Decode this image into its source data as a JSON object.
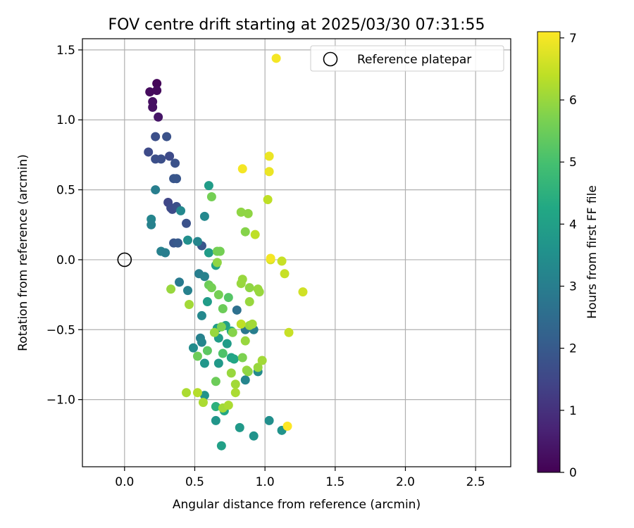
{
  "chart_data": {
    "type": "scatter",
    "title": "FOV centre drift starting at 2025/03/30 07:31:55",
    "xlabel": "Angular distance from reference (arcmin)",
    "ylabel": "Rotation from reference (arcmin)",
    "xlim": [
      -0.3,
      2.75
    ],
    "ylim": [
      -1.48,
      1.58
    ],
    "xticks": [
      0.0,
      0.5,
      1.0,
      1.5,
      2.0,
      2.5
    ],
    "xtick_labels": [
      "0.0",
      "0.5",
      "1.0",
      "1.5",
      "2.0",
      "2.5"
    ],
    "yticks": [
      -1.0,
      -0.5,
      0.0,
      0.5,
      1.0,
      1.5
    ],
    "ytick_labels": [
      "−1.0",
      "−0.5",
      "0.0",
      "0.5",
      "1.0",
      "1.5"
    ],
    "grid": true,
    "legend": {
      "position": "top-right",
      "label": "Reference platepar"
    },
    "reference_point": {
      "x": 0.0,
      "y": 0.0
    },
    "colorbar": {
      "label": "Hours from first FF file",
      "range": [
        0,
        7.1
      ],
      "ticks": [
        0,
        1,
        2,
        3,
        4,
        5,
        6,
        7
      ],
      "tick_labels": [
        "0",
        "1",
        "2",
        "3",
        "4",
        "5",
        "6",
        "7"
      ],
      "colormap": "viridis"
    },
    "points": [
      {
        "x": 0.23,
        "y": 1.26,
        "h": 0.1
      },
      {
        "x": 0.18,
        "y": 1.2,
        "h": 0.2
      },
      {
        "x": 0.23,
        "y": 1.21,
        "h": 0.2
      },
      {
        "x": 0.2,
        "y": 1.13,
        "h": 0.3
      },
      {
        "x": 0.2,
        "y": 1.09,
        "h": 0.3
      },
      {
        "x": 0.24,
        "y": 1.02,
        "h": 0.4
      },
      {
        "x": 0.22,
        "y": 0.88,
        "h": 1.7
      },
      {
        "x": 0.3,
        "y": 0.88,
        "h": 1.8
      },
      {
        "x": 0.17,
        "y": 0.77,
        "h": 1.6
      },
      {
        "x": 0.22,
        "y": 0.72,
        "h": 1.7
      },
      {
        "x": 0.26,
        "y": 0.72,
        "h": 1.7
      },
      {
        "x": 0.32,
        "y": 0.74,
        "h": 1.6
      },
      {
        "x": 0.36,
        "y": 0.69,
        "h": 1.8
      },
      {
        "x": 0.35,
        "y": 0.58,
        "h": 1.9
      },
      {
        "x": 0.37,
        "y": 0.58,
        "h": 1.9
      },
      {
        "x": 0.31,
        "y": 0.41,
        "h": 1.5
      },
      {
        "x": 0.33,
        "y": 0.37,
        "h": 1.6
      },
      {
        "x": 0.34,
        "y": 0.36,
        "h": 1.6
      },
      {
        "x": 0.37,
        "y": 0.38,
        "h": 1.7
      },
      {
        "x": 0.44,
        "y": 0.26,
        "h": 1.8
      },
      {
        "x": 0.35,
        "y": 0.12,
        "h": 1.9
      },
      {
        "x": 0.38,
        "y": 0.12,
        "h": 2.0
      },
      {
        "x": 0.55,
        "y": 0.1,
        "h": 1.9
      },
      {
        "x": 0.22,
        "y": 0.5,
        "h": 3.0
      },
      {
        "x": 0.4,
        "y": 0.35,
        "h": 3.3
      },
      {
        "x": 0.19,
        "y": 0.29,
        "h": 3.2
      },
      {
        "x": 0.19,
        "y": 0.25,
        "h": 3.1
      },
      {
        "x": 0.26,
        "y": 0.06,
        "h": 3.1
      },
      {
        "x": 0.29,
        "y": 0.05,
        "h": 3.0
      },
      {
        "x": 0.45,
        "y": 0.14,
        "h": 3.5
      },
      {
        "x": 0.52,
        "y": 0.13,
        "h": 3.2
      },
      {
        "x": 0.57,
        "y": 0.31,
        "h": 3.3
      },
      {
        "x": 0.6,
        "y": 0.53,
        "h": 3.9
      },
      {
        "x": 0.6,
        "y": 0.05,
        "h": 3.9
      },
      {
        "x": 0.65,
        "y": -0.04,
        "h": 4.0
      },
      {
        "x": 0.39,
        "y": -0.16,
        "h": 2.9
      },
      {
        "x": 0.45,
        "y": -0.22,
        "h": 3.1
      },
      {
        "x": 0.53,
        "y": -0.1,
        "h": 3.0
      },
      {
        "x": 0.57,
        "y": -0.12,
        "h": 3.1
      },
      {
        "x": 0.55,
        "y": -0.4,
        "h": 3.3
      },
      {
        "x": 0.59,
        "y": -0.3,
        "h": 3.9
      },
      {
        "x": 0.54,
        "y": -0.56,
        "h": 3.1
      },
      {
        "x": 0.55,
        "y": -0.59,
        "h": 3.2
      },
      {
        "x": 0.49,
        "y": -0.63,
        "h": 3.4
      },
      {
        "x": 0.57,
        "y": -0.74,
        "h": 3.7
      },
      {
        "x": 0.57,
        "y": -0.97,
        "h": 3.6
      },
      {
        "x": 0.66,
        "y": -0.49,
        "h": 3.9
      },
      {
        "x": 0.67,
        "y": -0.56,
        "h": 3.9
      },
      {
        "x": 0.67,
        "y": -0.74,
        "h": 3.8
      },
      {
        "x": 0.72,
        "y": -0.47,
        "h": 4.0
      },
      {
        "x": 0.73,
        "y": -0.6,
        "h": 3.9
      },
      {
        "x": 0.76,
        "y": -0.7,
        "h": 4.1
      },
      {
        "x": 0.78,
        "y": -0.71,
        "h": 4.2
      },
      {
        "x": 0.76,
        "y": -0.51,
        "h": 4.3
      },
      {
        "x": 0.8,
        "y": -0.36,
        "h": 2.6
      },
      {
        "x": 0.86,
        "y": -0.5,
        "h": 2.8
      },
      {
        "x": 0.92,
        "y": -0.5,
        "h": 3.0
      },
      {
        "x": 0.86,
        "y": -0.86,
        "h": 3.2
      },
      {
        "x": 0.95,
        "y": -0.8,
        "h": 3.4
      },
      {
        "x": 0.92,
        "y": -1.26,
        "h": 3.6
      },
      {
        "x": 0.82,
        "y": -1.2,
        "h": 3.8
      },
      {
        "x": 1.03,
        "y": -1.15,
        "h": 3.5
      },
      {
        "x": 1.12,
        "y": -1.22,
        "h": 3.6
      },
      {
        "x": 0.65,
        "y": -1.15,
        "h": 3.7
      },
      {
        "x": 0.69,
        "y": -1.33,
        "h": 4.0
      },
      {
        "x": 0.71,
        "y": -1.08,
        "h": 4.2
      },
      {
        "x": 0.65,
        "y": -1.05,
        "h": 4.5
      },
      {
        "x": 0.52,
        "y": -0.69,
        "h": 5.5
      },
      {
        "x": 0.59,
        "y": -0.65,
        "h": 5.3
      },
      {
        "x": 0.65,
        "y": -0.87,
        "h": 5.5
      },
      {
        "x": 0.7,
        "y": -0.67,
        "h": 5.1
      },
      {
        "x": 0.74,
        "y": -0.27,
        "h": 5.2
      },
      {
        "x": 0.7,
        "y": -0.35,
        "h": 5.5
      },
      {
        "x": 0.67,
        "y": -0.25,
        "h": 5.6
      },
      {
        "x": 0.6,
        "y": -0.18,
        "h": 5.5
      },
      {
        "x": 0.62,
        "y": -0.2,
        "h": 5.6
      },
      {
        "x": 0.64,
        "y": -0.52,
        "h": 6.0
      },
      {
        "x": 0.69,
        "y": -0.48,
        "h": 5.7
      },
      {
        "x": 0.62,
        "y": 0.45,
        "h": 5.6
      },
      {
        "x": 0.66,
        "y": 0.06,
        "h": 5.6
      },
      {
        "x": 0.68,
        "y": 0.06,
        "h": 5.6
      },
      {
        "x": 0.66,
        "y": -0.02,
        "h": 5.9
      },
      {
        "x": 0.33,
        "y": -0.21,
        "h": 6.0
      },
      {
        "x": 0.46,
        "y": -0.32,
        "h": 6.1
      },
      {
        "x": 0.44,
        "y": -0.95,
        "h": 6.2
      },
      {
        "x": 0.52,
        "y": -0.95,
        "h": 6.3
      },
      {
        "x": 0.56,
        "y": -1.02,
        "h": 6.2
      },
      {
        "x": 0.7,
        "y": -1.06,
        "h": 6.1
      },
      {
        "x": 0.74,
        "y": -1.04,
        "h": 6.2
      },
      {
        "x": 0.76,
        "y": -0.81,
        "h": 6.0
      },
      {
        "x": 0.79,
        "y": -0.89,
        "h": 6.1
      },
      {
        "x": 0.79,
        "y": -0.95,
        "h": 6.2
      },
      {
        "x": 0.84,
        "y": -0.7,
        "h": 5.7
      },
      {
        "x": 0.87,
        "y": -0.79,
        "h": 6.0
      },
      {
        "x": 0.88,
        "y": -0.8,
        "h": 5.9
      },
      {
        "x": 0.95,
        "y": -0.77,
        "h": 6.0
      },
      {
        "x": 0.98,
        "y": -0.72,
        "h": 6.1
      },
      {
        "x": 0.86,
        "y": -0.58,
        "h": 6.0
      },
      {
        "x": 0.89,
        "y": -0.47,
        "h": 6.0
      },
      {
        "x": 0.91,
        "y": -0.46,
        "h": 6.1
      },
      {
        "x": 0.89,
        "y": -0.3,
        "h": 6.0
      },
      {
        "x": 0.83,
        "y": -0.46,
        "h": 6.4
      },
      {
        "x": 0.77,
        "y": -0.52,
        "h": 5.8
      },
      {
        "x": 0.83,
        "y": -0.17,
        "h": 6.0
      },
      {
        "x": 0.84,
        "y": -0.14,
        "h": 6.0
      },
      {
        "x": 0.89,
        "y": -0.2,
        "h": 5.9
      },
      {
        "x": 0.95,
        "y": -0.21,
        "h": 6.0
      },
      {
        "x": 0.96,
        "y": -0.23,
        "h": 6.0
      },
      {
        "x": 0.86,
        "y": 0.2,
        "h": 5.8
      },
      {
        "x": 0.83,
        "y": 0.34,
        "h": 5.9
      },
      {
        "x": 0.88,
        "y": 0.33,
        "h": 5.9
      },
      {
        "x": 0.93,
        "y": 0.18,
        "h": 6.4
      },
      {
        "x": 1.14,
        "y": -0.1,
        "h": 6.5
      },
      {
        "x": 1.27,
        "y": -0.23,
        "h": 6.6
      },
      {
        "x": 1.17,
        "y": -0.52,
        "h": 6.5
      },
      {
        "x": 1.02,
        "y": 0.43,
        "h": 6.4
      },
      {
        "x": 1.04,
        "y": 0.0,
        "h": 6.6
      },
      {
        "x": 1.12,
        "y": -0.01,
        "h": 6.5
      },
      {
        "x": 0.84,
        "y": 0.65,
        "h": 7.0
      },
      {
        "x": 1.03,
        "y": 0.74,
        "h": 6.9
      },
      {
        "x": 1.03,
        "y": 0.63,
        "h": 6.9
      },
      {
        "x": 1.04,
        "y": 0.01,
        "h": 7.0
      },
      {
        "x": 1.08,
        "y": 1.44,
        "h": 7.0
      },
      {
        "x": 1.16,
        "y": -1.19,
        "h": 7.1
      }
    ]
  }
}
